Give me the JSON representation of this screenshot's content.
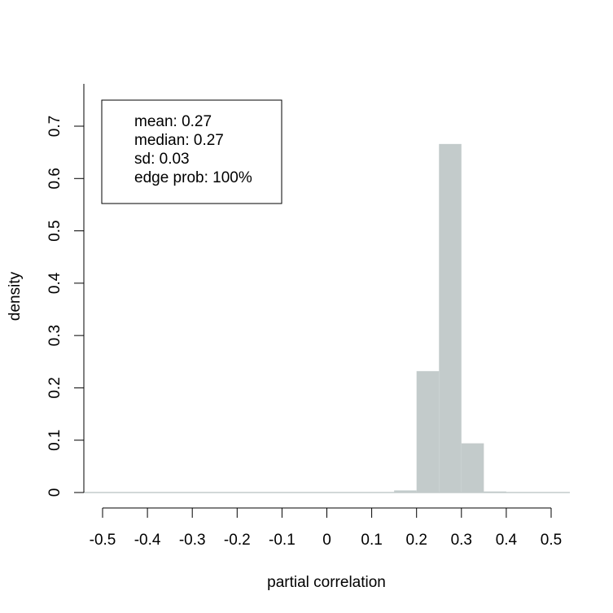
{
  "chart_data": {
    "type": "bar",
    "subtype": "histogram",
    "xlabel": "partial correlation",
    "ylabel": "density",
    "xlim": [
      -0.5,
      0.5
    ],
    "ylim": [
      0,
      0.7
    ],
    "x_ticks": [
      "-0.5",
      "-0.4",
      "-0.3",
      "-0.2",
      "-0.1",
      "0",
      "0.1",
      "0.2",
      "0.3",
      "0.4",
      "0.5"
    ],
    "y_ticks": [
      "0",
      "0.1",
      "0.2",
      "0.3",
      "0.4",
      "0.5",
      "0.6",
      "0.7"
    ],
    "bin_width": 0.05,
    "bins": [
      {
        "x0": 0.15,
        "x1": 0.2,
        "density": 0.004
      },
      {
        "x0": 0.2,
        "x1": 0.25,
        "density": 0.232
      },
      {
        "x0": 0.25,
        "x1": 0.3,
        "density": 0.666
      },
      {
        "x0": 0.3,
        "x1": 0.35,
        "density": 0.094
      },
      {
        "x0": 0.35,
        "x1": 0.4,
        "density": 0.002
      }
    ],
    "bar_color": "#c3cbcb",
    "grid": false,
    "legend_position": "top-left",
    "legend_lines": [
      "mean: 0.27",
      "median: 0.27",
      "sd: 0.03",
      "edge prob: 100%"
    ]
  }
}
